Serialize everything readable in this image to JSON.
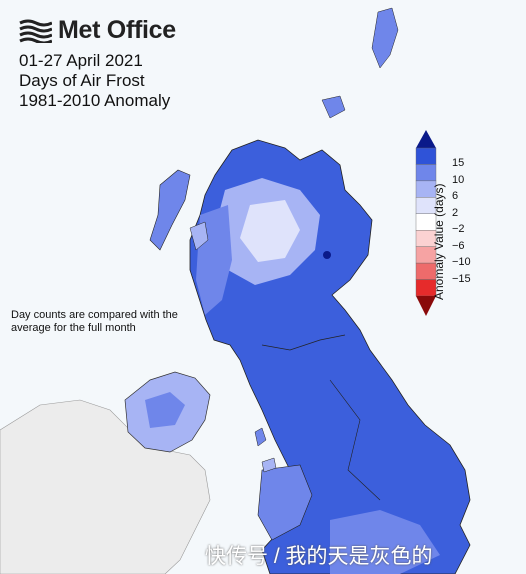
{
  "header": {
    "logo_text": "Met Office",
    "logo_icon": "met-office-wave-icon",
    "date_range": "01-27 April 2021",
    "metric": "Days of Air Frost",
    "baseline": "1981-2010 Anomaly"
  },
  "note": "Day counts are compared with the average for the full month",
  "legend": {
    "title": "Anomaly Value (days)",
    "ticks": [
      "15",
      "10",
      "6",
      "2",
      "−2",
      "−6",
      "−10",
      "−15"
    ],
    "colors": [
      "#2f53d8",
      "#6f86ea",
      "#a7b4f4",
      "#dfe3fb",
      "#ffffff",
      "#fbd2d2",
      "#f6a3a3",
      "#ee6b6b",
      "#e62b2b"
    ],
    "cap_top": "#0a1a8a",
    "cap_bottom": "#8a0a0a"
  },
  "map_colors": {
    "sea": "#f4f8fb",
    "ireland": "#ececec",
    "strong": "#3c5fdc",
    "mid": "#6f86ea",
    "light": "#a7b4f4",
    "pale": "#dfe3fb"
  },
  "watermark": "快传号 / 我的天是灰色的"
}
